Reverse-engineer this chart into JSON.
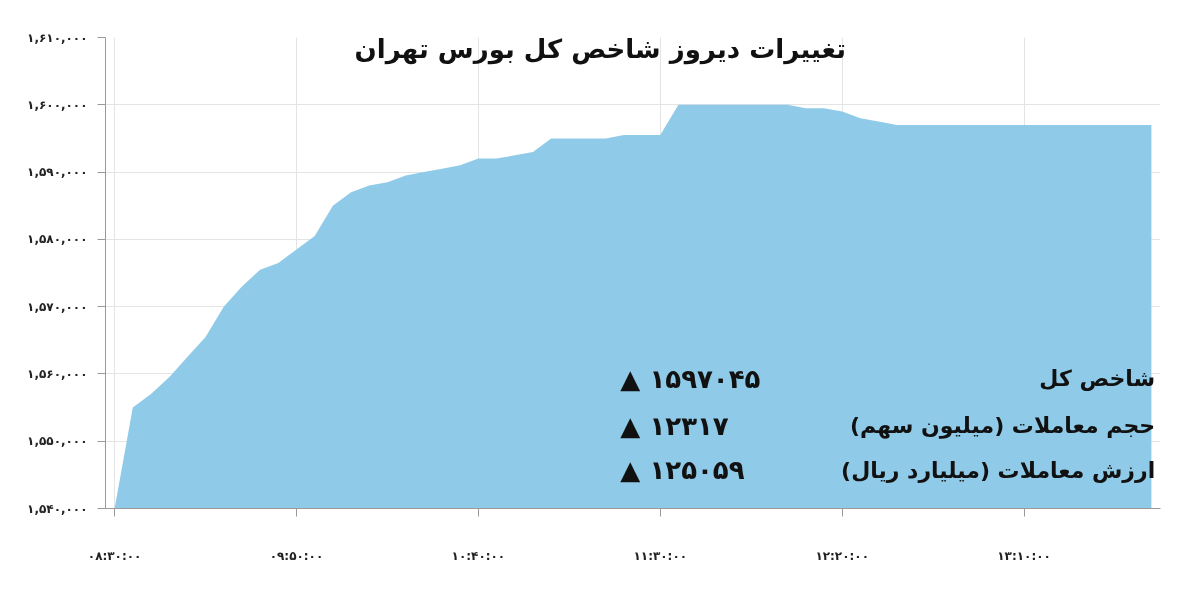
{
  "chart_data": {
    "type": "area",
    "title": "تغییرات دیروز شاخص کل بورس تهران",
    "categories": [
      "۰۸:۳۰:۰۰",
      null,
      null,
      null,
      null,
      null,
      null,
      null,
      null,
      null,
      "۰۹:۵۰:۰۰",
      null,
      null,
      null,
      null,
      null,
      null,
      null,
      null,
      null,
      "۱۰:۴۰:۰۰",
      null,
      null,
      null,
      null,
      null,
      null,
      null,
      null,
      null,
      "۱۱:۳۰:۰۰",
      null,
      null,
      null,
      null,
      null,
      null,
      null,
      null,
      null,
      "۱۲:۲۰:۰۰",
      null,
      null,
      null,
      null,
      null,
      null,
      null,
      null,
      null,
      "۱۳:۱۰:۰۰",
      null,
      null,
      null,
      null,
      null,
      null,
      null
    ],
    "series": [
      {
        "color": "#8fcbe8",
        "values": [
          1540000,
          1555000,
          1557000,
          1559500,
          1562500,
          1565500,
          1570000,
          1573000,
          1575500,
          1576500,
          1578500,
          1580500,
          1585000,
          1587000,
          1588000,
          1588500,
          1589500,
          1590000,
          1590500,
          1591000,
          1592000,
          1592000,
          1592500,
          1593000,
          1595000,
          1595000,
          1595000,
          1595000,
          1595500,
          1595500,
          1595500,
          1600000,
          1600000,
          1600000,
          1600000,
          1600000,
          1600000,
          1600000,
          1599500,
          1599500,
          1599000,
          1598000,
          1597500,
          1597000,
          1597000,
          1597000,
          1597000,
          1597000,
          1597000,
          1597000,
          1597000,
          1597000,
          1597000,
          1597000,
          1597000,
          1597000,
          1597000,
          1597000
        ]
      }
    ],
    "ylim": [
      1540000,
      1610000
    ],
    "yticks": [
      {
        "value": 1540000,
        "label": "۱,۵۴۰,۰۰۰"
      },
      {
        "value": 1550000,
        "label": "۱,۵۵۰,۰۰۰"
      },
      {
        "value": 1560000,
        "label": "۱,۵۶۰,۰۰۰"
      },
      {
        "value": 1570000,
        "label": "۱,۵۷۰,۰۰۰"
      },
      {
        "value": 1580000,
        "label": "۱,۵۸۰,۰۰۰"
      },
      {
        "value": 1590000,
        "label": "۱,۵۹۰,۰۰۰"
      },
      {
        "value": 1600000,
        "label": "۱,۶۰۰,۰۰۰"
      },
      {
        "value": 1610000,
        "label": "۱,۶۱۰,۰۰۰"
      }
    ],
    "grid": true,
    "annotations": [
      "شاخص کل",
      "▲ ۱۵۹۷۰۴۵",
      "حجم معاملات (میلیون سهم)",
      "▲ ۱۲۳۱۷",
      "ارزش معاملات (میلیارد ریال)",
      "▲ ۱۲۵۰۵۹"
    ]
  }
}
